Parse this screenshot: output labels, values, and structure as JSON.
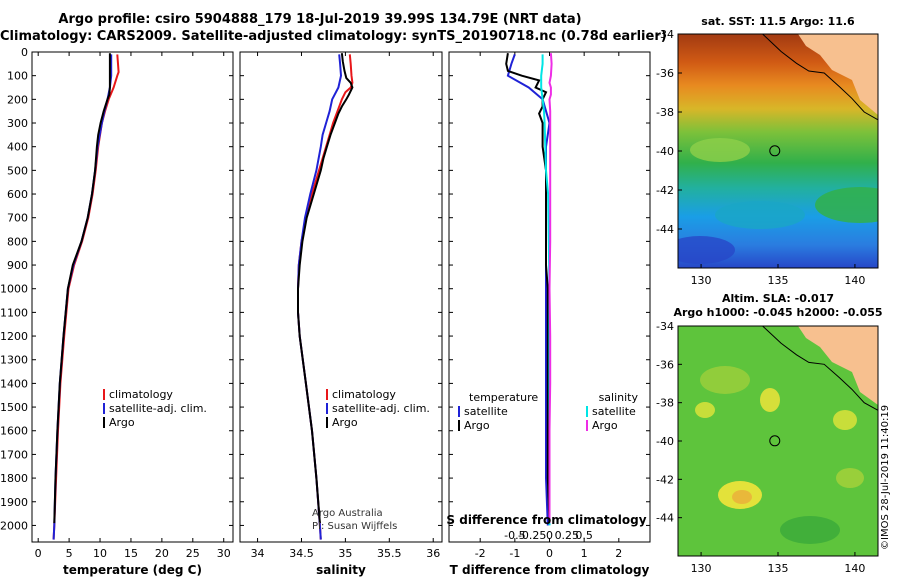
{
  "title": {
    "line1": "Argo profile: csiro 5904888_179 18-Jul-2019 39.99S 134.79E (NRT data)",
    "line2": "Climatology: CARS2009. Satellite-adjusted climatology: synTS_20190718.nc (0.78d earlier)"
  },
  "colors": {
    "climatology": "#e8171a",
    "satellite": "#1f22d6",
    "argo": "#000000",
    "salinity_satellite": "#00e5e5",
    "salinity_argo": "#ee2de6"
  },
  "depth_axis": {
    "range": [
      0,
      2070
    ],
    "ticks": [
      0,
      100,
      200,
      300,
      400,
      500,
      600,
      700,
      800,
      900,
      1000,
      1100,
      1200,
      1300,
      1400,
      1500,
      1600,
      1700,
      1800,
      1900,
      2000
    ],
    "tick_labels": [
      "0",
      "100",
      "200",
      "300",
      "400",
      "500",
      "600",
      "700",
      "800",
      "900",
      "1000",
      "1100",
      "1200",
      "1300",
      "1400",
      "1500",
      "1600",
      "1700",
      "1800",
      "1900",
      "2000"
    ]
  },
  "chart_data": [
    {
      "type": "line",
      "id": "temperature",
      "xlabel": "temperature (deg C)",
      "xlim": [
        -1,
        31.5
      ],
      "x_ticks": [
        0,
        5,
        10,
        15,
        20,
        25,
        30
      ],
      "x_tick_labels": [
        "0",
        "5",
        "10",
        "15",
        "20",
        "25",
        "30"
      ],
      "legend": [
        "climatology",
        "satellite-adj. clim.",
        "Argo"
      ],
      "series": [
        {
          "name": "climatology",
          "key": "climatology",
          "depth": [
            10,
            50,
            85,
            100,
            150,
            200,
            250,
            300,
            400,
            500,
            600,
            700,
            800,
            900,
            1000,
            1200,
            1400,
            1600,
            1800,
            2000,
            2060
          ],
          "values": [
            12.8,
            12.9,
            13.0,
            12.8,
            12.2,
            11.4,
            10.8,
            10.3,
            9.7,
            9.3,
            8.8,
            8.1,
            7.1,
            5.8,
            4.9,
            4.2,
            3.6,
            3.2,
            2.9,
            2.6,
            2.5
          ]
        },
        {
          "name": "satellite-adj. clim.",
          "key": "satellite",
          "depth": [
            10,
            50,
            100,
            150,
            200,
            250,
            300,
            400,
            500,
            600,
            700,
            800,
            900,
            1000,
            1200,
            1400,
            1600,
            1800,
            2000,
            2060
          ],
          "values": [
            11.8,
            11.8,
            11.8,
            11.6,
            11.2,
            10.7,
            10.3,
            9.6,
            9.2,
            8.7,
            8.0,
            7.0,
            5.7,
            4.8,
            4.1,
            3.5,
            3.1,
            2.8,
            2.6,
            2.5
          ]
        },
        {
          "name": "Argo",
          "key": "argo",
          "depth": [
            5,
            50,
            100,
            150,
            180,
            200,
            250,
            300,
            350,
            400,
            500,
            600,
            700,
            800,
            900,
            1000,
            1200,
            1400,
            1600,
            1800,
            1990
          ],
          "values": [
            11.6,
            11.6,
            11.6,
            11.6,
            11.5,
            11.2,
            10.6,
            10.1,
            9.7,
            9.5,
            9.2,
            8.7,
            8.0,
            7.0,
            5.6,
            4.8,
            4.1,
            3.5,
            3.1,
            2.8,
            2.6
          ]
        }
      ]
    },
    {
      "type": "line",
      "id": "salinity",
      "xlabel": "salinity",
      "xlim": [
        33.8,
        36.1
      ],
      "x_ticks": [
        34,
        34.5,
        35,
        35.5,
        36
      ],
      "x_tick_labels": [
        "34",
        "34.5",
        "35",
        "35.5",
        "36"
      ],
      "legend": [
        "climatology",
        "satellite-adj. clim.",
        "Argo"
      ],
      "note": [
        "Argo Australia",
        "PI: Susan Wijffels"
      ],
      "series": [
        {
          "name": "climatology",
          "key": "climatology",
          "depth": [
            10,
            50,
            100,
            130,
            150,
            170,
            200,
            250,
            300,
            350,
            400,
            500,
            600,
            700,
            800,
            900,
            1000,
            1100,
            1200,
            1400,
            1600,
            1800,
            2000,
            2060
          ],
          "values": [
            35.05,
            35.06,
            35.07,
            35.08,
            35.06,
            35.0,
            34.96,
            34.91,
            34.86,
            34.82,
            34.78,
            34.7,
            34.62,
            34.55,
            34.5,
            34.47,
            34.46,
            34.46,
            34.48,
            34.55,
            34.62,
            34.67,
            34.71,
            34.72
          ]
        },
        {
          "name": "satellite-adj. clim.",
          "key": "satellite",
          "depth": [
            10,
            50,
            100,
            150,
            200,
            250,
            300,
            350,
            400,
            500,
            600,
            700,
            800,
            900,
            1000,
            1100,
            1200,
            1400,
            1600,
            1800,
            2000,
            2060
          ],
          "values": [
            34.93,
            34.94,
            34.95,
            34.92,
            34.85,
            34.82,
            34.78,
            34.74,
            34.72,
            34.67,
            34.6,
            34.54,
            34.5,
            34.47,
            34.46,
            34.46,
            34.48,
            34.55,
            34.62,
            34.67,
            34.71,
            34.72
          ]
        },
        {
          "name": "Argo",
          "key": "argo",
          "depth": [
            5,
            40,
            80,
            110,
            130,
            150,
            180,
            200,
            230,
            260,
            300,
            350,
            400,
            450,
            500,
            600,
            700,
            800,
            900,
            1000,
            1100,
            1200,
            1400,
            1600,
            1800,
            1990
          ],
          "values": [
            34.96,
            34.97,
            34.99,
            35.01,
            35.06,
            35.08,
            35.04,
            35.01,
            34.96,
            34.92,
            34.88,
            34.83,
            34.79,
            34.75,
            34.72,
            34.64,
            34.56,
            34.51,
            34.48,
            34.46,
            34.46,
            34.48,
            34.55,
            34.62,
            34.67,
            34.71
          ]
        }
      ]
    },
    {
      "type": "line",
      "id": "difference",
      "xlabel": "T difference from climatology",
      "xlim": [
        -2.9,
        2.9
      ],
      "x_ticks": [
        -2,
        -1,
        0,
        1,
        2
      ],
      "x_tick_labels": [
        "-2",
        "-1",
        "0",
        "1",
        "2"
      ],
      "top_ticks": [
        -0.5,
        -0.25,
        0,
        0.25,
        0.5
      ],
      "top_tick_labels": [
        "-0.5",
        "-0.25",
        "0",
        "0.25",
        "0.5"
      ],
      "top_xlabel": "S difference from climatology",
      "legend_temperature": {
        "title": "temperature",
        "items": [
          "satellite",
          "Argo"
        ]
      },
      "legend_salinity": {
        "title": "salinity",
        "items": [
          "satellite",
          "Argo"
        ]
      },
      "series": [
        {
          "name": "temperature satellite",
          "key": "satellite",
          "depth": [
            10,
            50,
            100,
            150,
            200,
            300,
            400,
            500,
            600,
            700,
            800,
            900,
            1000,
            1200,
            1400,
            1600,
            1800,
            2000
          ],
          "values": [
            -1.0,
            -1.1,
            -1.2,
            -0.6,
            -0.2,
            0.0,
            -0.1,
            -0.1,
            -0.1,
            -0.1,
            -0.1,
            -0.1,
            -0.1,
            -0.1,
            -0.1,
            -0.1,
            -0.1,
            -0.05
          ]
        },
        {
          "name": "temperature Argo",
          "key": "argo",
          "depth": [
            5,
            50,
            80,
            100,
            120,
            150,
            170,
            200,
            230,
            260,
            300,
            350,
            400,
            500,
            600,
            700,
            800,
            900,
            1000,
            1200,
            1400,
            1600,
            1800,
            1990
          ],
          "values": [
            -1.2,
            -1.25,
            -1.2,
            -0.8,
            -0.3,
            -0.4,
            -0.1,
            -0.2,
            -0.2,
            -0.3,
            -0.2,
            -0.2,
            -0.2,
            -0.1,
            -0.1,
            -0.1,
            -0.1,
            -0.1,
            -0.05,
            -0.05,
            -0.05,
            -0.05,
            -0.05,
            0.0
          ]
        },
        {
          "name": "salinity satellite",
          "key": "salinity_satellite",
          "depth": [
            10,
            50,
            100,
            150,
            200,
            250,
            300,
            400,
            500,
            600,
            800,
            1000,
            1200,
            1400,
            1600,
            1800,
            2000
          ],
          "values": [
            -0.1,
            -0.1,
            -0.12,
            -0.12,
            -0.1,
            -0.08,
            -0.07,
            -0.06,
            -0.05,
            -0.02,
            -0.01,
            0.0,
            0.0,
            0.0,
            0.0,
            0.0,
            0.0
          ]
        },
        {
          "name": "salinity Argo",
          "key": "salinity_argo",
          "depth": [
            5,
            50,
            100,
            130,
            150,
            180,
            200,
            250,
            300,
            400,
            500,
            600,
            800,
            1000,
            1200,
            1400,
            1600,
            1800,
            1990
          ],
          "values": [
            0.02,
            0.03,
            0.02,
            0.0,
            0.02,
            0.02,
            0.0,
            0.01,
            0.01,
            0.01,
            0.01,
            0.01,
            0.01,
            0.0,
            0.01,
            0.01,
            0.0,
            0.0,
            0.0
          ]
        }
      ]
    },
    {
      "type": "heatmap",
      "id": "sst_map",
      "title": "sat. SST: 11.5 Argo: 11.6",
      "xlim": [
        128.5,
        141.5
      ],
      "ylim": [
        -46,
        -34
      ],
      "x_ticks": [
        130,
        135,
        140
      ],
      "x_tick_labels": [
        "130",
        "135",
        "140"
      ],
      "y_ticks": [
        -34,
        -36,
        -38,
        -40,
        -42,
        -44
      ],
      "y_tick_labels": [
        "-34",
        "-36",
        "-38",
        "-40",
        "-42",
        "-44"
      ],
      "marker": {
        "lon": 134.79,
        "lat": -39.99
      }
    },
    {
      "type": "heatmap",
      "id": "sla_map",
      "title": [
        "Altim. SLA: -0.017",
        "Argo h1000: -0.045 h2000: -0.055"
      ],
      "xlim": [
        128.5,
        141.5
      ],
      "ylim": [
        -46,
        -34
      ],
      "x_ticks": [
        130,
        135,
        140
      ],
      "x_tick_labels": [
        "130",
        "135",
        "140"
      ],
      "y_ticks": [
        -34,
        -36,
        -38,
        -40,
        -42,
        -44
      ],
      "y_tick_labels": [
        "-34",
        "-36",
        "-38",
        "-40",
        "-42",
        "-44"
      ],
      "marker": {
        "lon": 134.79,
        "lat": -39.99
      }
    }
  ],
  "stamp": "©IMOS 28-Jul-2019 11:40:19"
}
